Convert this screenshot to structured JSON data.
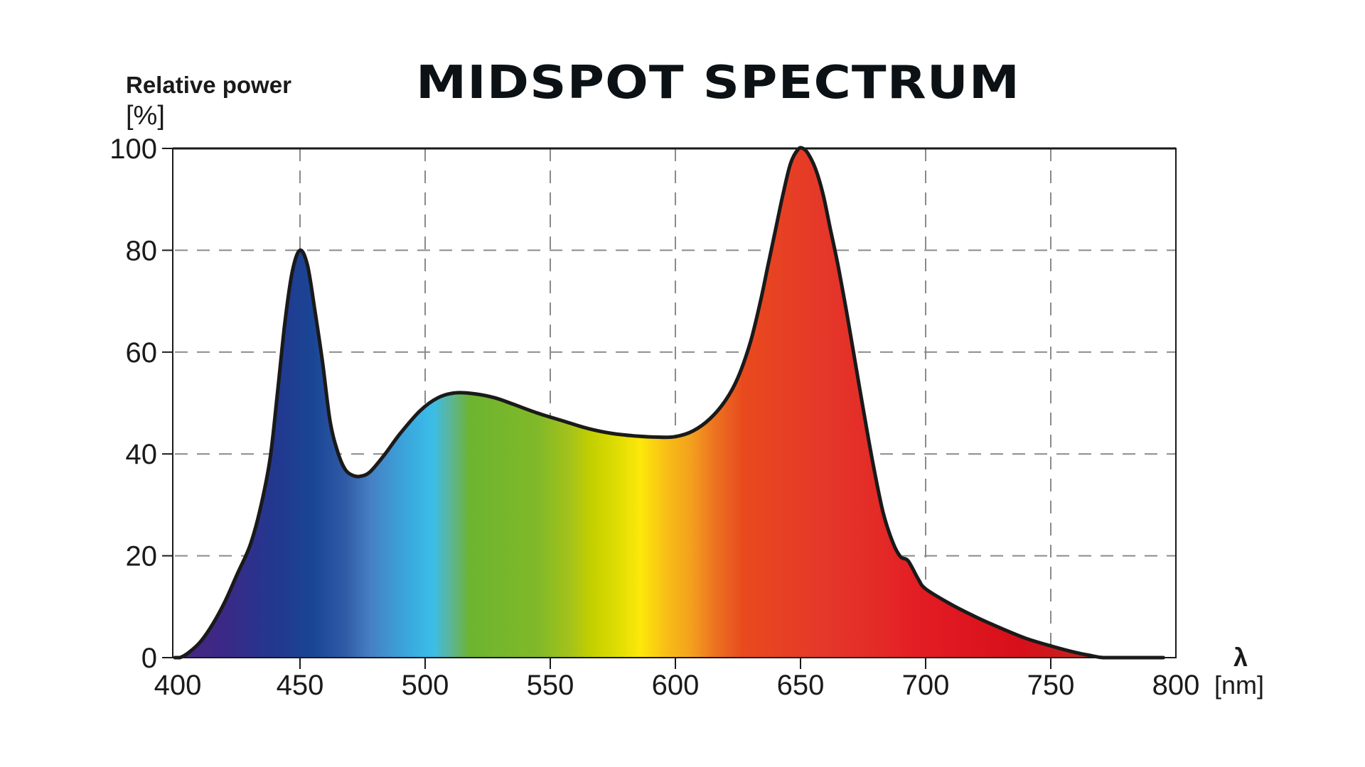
{
  "chart_data": {
    "type": "area",
    "title": "MIDSPOT SPECTRUM",
    "ylabel": "Relative power",
    "ylabel_unit": "[%]",
    "xlabel": "λ",
    "xlabel_unit": "[nm]",
    "xlim": [
      400,
      800
    ],
    "ylim": [
      0,
      100
    ],
    "xticks": [
      400,
      450,
      500,
      550,
      600,
      650,
      700,
      750,
      800
    ],
    "yticks": [
      0,
      20,
      40,
      60,
      80,
      100
    ],
    "grid": "dashed",
    "legend": null,
    "series": [
      {
        "name": "Midspot spectrum",
        "x": [
          400,
          402,
          405,
          410,
          415,
          420,
          425,
          430,
          434,
          438,
          441,
          444,
          447,
          450,
          453,
          456,
          459,
          462,
          465,
          468,
          471,
          474,
          478,
          484,
          490,
          498,
          505,
          512,
          520,
          528,
          535,
          545,
          555,
          565,
          575,
          585,
          593,
          600,
          607,
          614,
          620,
          625,
          630,
          634,
          637,
          640,
          643,
          646,
          649,
          651,
          653,
          656,
          659,
          662,
          665,
          668,
          671,
          675,
          679,
          683,
          687,
          690,
          693,
          697,
          700,
          710,
          720,
          730,
          740,
          750,
          760,
          766,
          771,
          780,
          790,
          795
        ],
        "values": [
          0,
          0,
          0.8,
          3,
          6.5,
          11,
          16.5,
          22,
          29,
          39,
          52,
          66,
          76,
          80,
          77,
          68,
          58,
          46.5,
          40.5,
          37,
          35.8,
          35.6,
          36.5,
          40,
          44,
          48.5,
          51,
          52,
          51.8,
          51,
          49.8,
          48,
          46.5,
          45,
          44,
          43.5,
          43.3,
          43.4,
          44.5,
          47,
          50.5,
          55,
          62,
          70,
          77,
          84,
          91,
          97,
          99.8,
          100,
          99,
          96,
          91,
          84,
          77,
          69,
          60.5,
          49,
          38,
          28.5,
          22.5,
          19.8,
          19,
          15.5,
          13.5,
          10.5,
          8,
          5.8,
          3.8,
          2.3,
          1,
          0.4,
          0,
          0,
          0,
          0
        ]
      }
    ],
    "spectrum_gradient": [
      {
        "nm": 400,
        "color": "#4a2682"
      },
      {
        "nm": 418,
        "color": "#3c2886"
      },
      {
        "nm": 440,
        "color": "#22388f"
      },
      {
        "nm": 455,
        "color": "#1a4595"
      },
      {
        "nm": 468,
        "color": "#2f5aa6"
      },
      {
        "nm": 478,
        "color": "#4680c2"
      },
      {
        "nm": 492,
        "color": "#3aa5dc"
      },
      {
        "nm": 503,
        "color": "#3bbde9"
      },
      {
        "nm": 510,
        "color": "#5bb59a"
      },
      {
        "nm": 518,
        "color": "#6db42f"
      },
      {
        "nm": 545,
        "color": "#80b929"
      },
      {
        "nm": 558,
        "color": "#a5c21b"
      },
      {
        "nm": 566,
        "color": "#c2cf00"
      },
      {
        "nm": 576,
        "color": "#dcdc02"
      },
      {
        "nm": 586,
        "color": "#fde80b"
      },
      {
        "nm": 596,
        "color": "#f8c015"
      },
      {
        "nm": 606,
        "color": "#f4a11e"
      },
      {
        "nm": 616,
        "color": "#ec7221"
      },
      {
        "nm": 627,
        "color": "#e84a1e"
      },
      {
        "nm": 660,
        "color": "#e5372a"
      },
      {
        "nm": 680,
        "color": "#e42b27"
      },
      {
        "nm": 700,
        "color": "#e31b23"
      },
      {
        "nm": 738,
        "color": "#d70f1a"
      },
      {
        "nm": 760,
        "color": "#c8201e"
      },
      {
        "nm": 800,
        "color": "#c8201e"
      }
    ]
  },
  "colors": {
    "curve_outline": "#1a1a1a",
    "frame": "#1a1a1a",
    "grid": "#8a8a8a"
  }
}
